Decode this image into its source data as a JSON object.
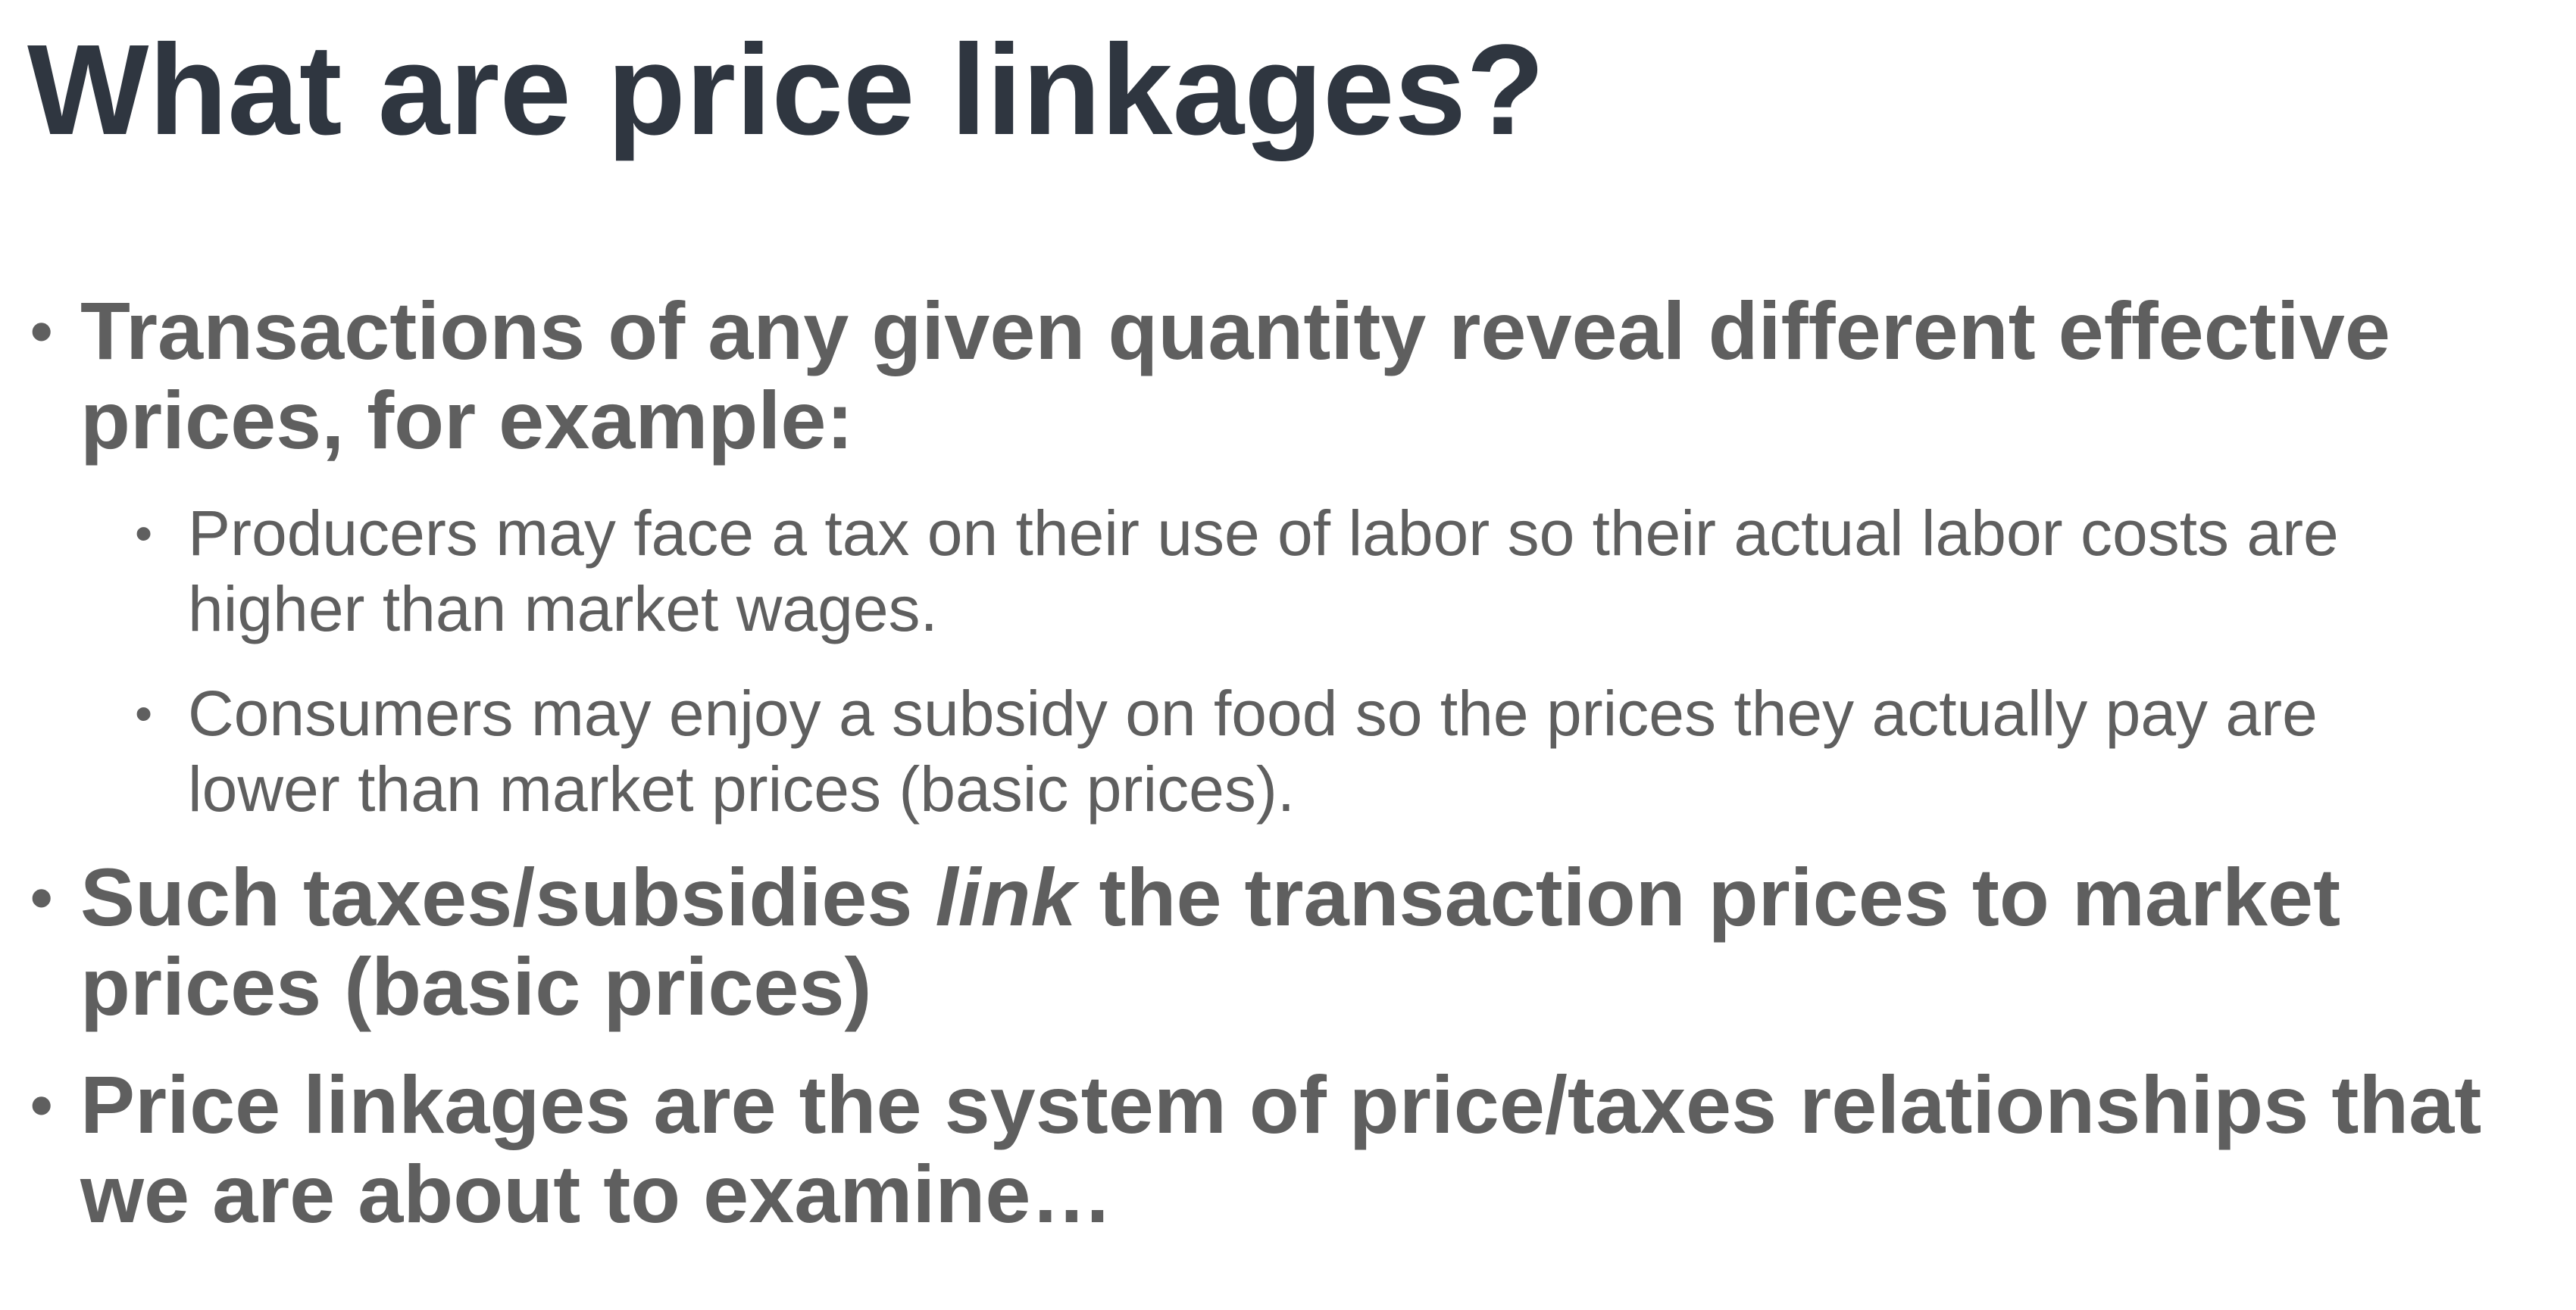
{
  "slide": {
    "title": "What are price linkages?",
    "bullet_char": "•",
    "bullets": [
      {
        "line1": "Transactions of any given quantity reveal different effective",
        "line2": "prices, for example:"
      },
      {
        "line1": "Producers may face a tax on their use of labor so their actual labor costs are",
        "line2": "higher than market wages."
      },
      {
        "line1": "Consumers may enjoy a subsidy on food so the prices they actually pay are",
        "line2": "lower than market prices (basic prices)."
      },
      {
        "line1_before": "Such taxes/subsidies ",
        "line1_emphasis": "link",
        "line1_after": " the transaction prices to market",
        "line2": "prices (basic prices)"
      },
      {
        "line1": "Price linkages are the system of price/taxes relationships that",
        "line2": "we are about to examine…"
      }
    ]
  },
  "colors": {
    "title": "#2f3640",
    "body": "#5f5f5f",
    "background": "#ffffff"
  }
}
